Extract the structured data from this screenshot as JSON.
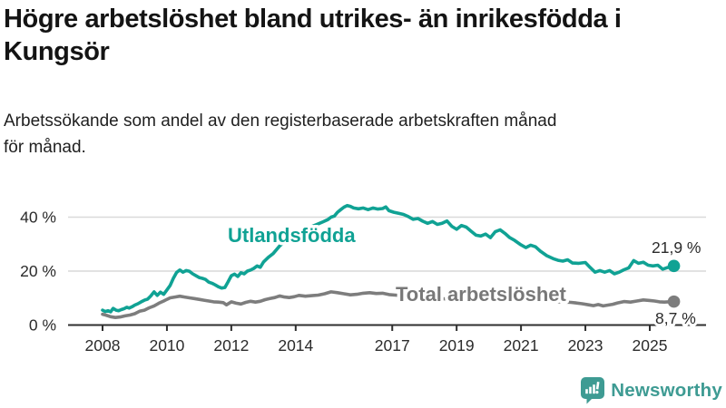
{
  "header": {
    "title_line1": "Högre arbetslöshet bland utrikes- än inrikesfödda i",
    "title_line2": "Kungsör",
    "subtitle_line1": "Arbetssökande som andel av den registerbaserade arbetskraften månad",
    "subtitle_line2": "för månad."
  },
  "chart_data": {
    "type": "line",
    "title": "",
    "xlabel": "",
    "ylabel": "",
    "x_unit": "year (monthly series)",
    "y_unit": "% av arbetskraften",
    "x_range": [
      2008,
      2025.75
    ],
    "y_range": [
      0,
      47
    ],
    "grid": true,
    "x_ticks": [
      2008,
      2010,
      2012,
      2014,
      2017,
      2019,
      2021,
      2023,
      2025
    ],
    "y_ticks": [
      {
        "value": 0,
        "label": "0 %"
      },
      {
        "value": 20,
        "label": "20 %"
      },
      {
        "value": 40,
        "label": "40 %"
      }
    ],
    "series": [
      {
        "name": "Utlandsfödda",
        "color": "#10a294",
        "end_label": "21,9 %",
        "end_value": 21.9,
        "points": [
          [
            2008.0,
            5.5
          ],
          [
            2008.08,
            5.0
          ],
          [
            2008.17,
            5.3
          ],
          [
            2008.25,
            4.9
          ],
          [
            2008.33,
            6.2
          ],
          [
            2008.42,
            5.5
          ],
          [
            2008.5,
            5.3
          ],
          [
            2008.58,
            5.7
          ],
          [
            2008.67,
            6.1
          ],
          [
            2008.75,
            6.6
          ],
          [
            2008.83,
            6.3
          ],
          [
            2008.92,
            6.8
          ],
          [
            2009.0,
            7.4
          ],
          [
            2009.1,
            7.9
          ],
          [
            2009.2,
            8.6
          ],
          [
            2009.3,
            9.2
          ],
          [
            2009.4,
            9.6
          ],
          [
            2009.5,
            10.8
          ],
          [
            2009.6,
            12.3
          ],
          [
            2009.7,
            11.0
          ],
          [
            2009.8,
            12.2
          ],
          [
            2009.9,
            11.4
          ],
          [
            2010.0,
            13.0
          ],
          [
            2010.1,
            14.7
          ],
          [
            2010.2,
            17.3
          ],
          [
            2010.3,
            19.5
          ],
          [
            2010.4,
            20.4
          ],
          [
            2010.5,
            19.6
          ],
          [
            2010.6,
            20.2
          ],
          [
            2010.7,
            19.9
          ],
          [
            2010.8,
            19.0
          ],
          [
            2010.9,
            18.3
          ],
          [
            2011.0,
            17.6
          ],
          [
            2011.1,
            17.3
          ],
          [
            2011.2,
            16.9
          ],
          [
            2011.3,
            15.9
          ],
          [
            2011.4,
            15.5
          ],
          [
            2011.5,
            14.9
          ],
          [
            2011.6,
            14.2
          ],
          [
            2011.7,
            13.7
          ],
          [
            2011.8,
            13.9
          ],
          [
            2011.9,
            16.0
          ],
          [
            2012.0,
            18.3
          ],
          [
            2012.1,
            18.9
          ],
          [
            2012.2,
            18.0
          ],
          [
            2012.3,
            19.4
          ],
          [
            2012.4,
            19.0
          ],
          [
            2012.5,
            20.0
          ],
          [
            2012.6,
            20.4
          ],
          [
            2012.7,
            21.0
          ],
          [
            2012.8,
            21.9
          ],
          [
            2012.9,
            21.4
          ],
          [
            2013.0,
            23.4
          ],
          [
            2013.15,
            25.1
          ],
          [
            2013.3,
            26.5
          ],
          [
            2013.5,
            29.3
          ],
          [
            2013.7,
            31.3
          ],
          [
            2013.9,
            33.0
          ],
          [
            2014.1,
            34.3
          ],
          [
            2014.35,
            35.8
          ],
          [
            2014.6,
            37.0
          ],
          [
            2014.85,
            38.3
          ],
          [
            2015.0,
            39.1
          ],
          [
            2015.1,
            40.0
          ],
          [
            2015.2,
            40.4
          ],
          [
            2015.3,
            41.8
          ],
          [
            2015.4,
            42.8
          ],
          [
            2015.5,
            43.7
          ],
          [
            2015.6,
            44.3
          ],
          [
            2015.7,
            44.0
          ],
          [
            2015.8,
            43.4
          ],
          [
            2015.95,
            43.1
          ],
          [
            2016.1,
            43.4
          ],
          [
            2016.25,
            42.8
          ],
          [
            2016.4,
            43.4
          ],
          [
            2016.55,
            43.0
          ],
          [
            2016.7,
            43.2
          ],
          [
            2016.8,
            43.8
          ],
          [
            2016.9,
            42.4
          ],
          [
            2017.05,
            41.8
          ],
          [
            2017.2,
            41.4
          ],
          [
            2017.35,
            41.0
          ],
          [
            2017.5,
            40.2
          ],
          [
            2017.65,
            39.2
          ],
          [
            2017.8,
            39.5
          ],
          [
            2017.95,
            38.5
          ],
          [
            2018.1,
            37.7
          ],
          [
            2018.25,
            38.4
          ],
          [
            2018.4,
            37.3
          ],
          [
            2018.55,
            37.7
          ],
          [
            2018.7,
            38.6
          ],
          [
            2018.85,
            36.6
          ],
          [
            2019.0,
            35.5
          ],
          [
            2019.15,
            36.9
          ],
          [
            2019.3,
            36.3
          ],
          [
            2019.45,
            34.8
          ],
          [
            2019.6,
            33.3
          ],
          [
            2019.75,
            33.0
          ],
          [
            2019.9,
            33.7
          ],
          [
            2020.05,
            32.4
          ],
          [
            2020.2,
            34.6
          ],
          [
            2020.35,
            35.3
          ],
          [
            2020.5,
            34.0
          ],
          [
            2020.65,
            32.4
          ],
          [
            2020.8,
            31.4
          ],
          [
            2021.0,
            29.7
          ],
          [
            2021.15,
            28.7
          ],
          [
            2021.3,
            29.6
          ],
          [
            2021.45,
            29.0
          ],
          [
            2021.6,
            27.4
          ],
          [
            2021.8,
            25.7
          ],
          [
            2022.0,
            24.6
          ],
          [
            2022.15,
            24.0
          ],
          [
            2022.3,
            23.7
          ],
          [
            2022.45,
            24.2
          ],
          [
            2022.6,
            23.0
          ],
          [
            2022.8,
            22.9
          ],
          [
            2023.0,
            23.2
          ],
          [
            2023.15,
            21.3
          ],
          [
            2023.3,
            19.6
          ],
          [
            2023.45,
            20.2
          ],
          [
            2023.6,
            19.6
          ],
          [
            2023.75,
            20.2
          ],
          [
            2023.9,
            19.0
          ],
          [
            2024.05,
            19.6
          ],
          [
            2024.2,
            20.5
          ],
          [
            2024.35,
            21.2
          ],
          [
            2024.5,
            23.9
          ],
          [
            2024.65,
            22.9
          ],
          [
            2024.8,
            23.3
          ],
          [
            2024.95,
            22.2
          ],
          [
            2025.1,
            21.9
          ],
          [
            2025.25,
            22.2
          ],
          [
            2025.4,
            20.7
          ],
          [
            2025.55,
            21.3
          ],
          [
            2025.75,
            21.9
          ]
        ]
      },
      {
        "name": "Total arbetslöshet",
        "color": "#7d7d7d",
        "end_label": "8,7 %",
        "end_value": 8.7,
        "points": [
          [
            2008.0,
            4.0
          ],
          [
            2008.1,
            3.7
          ],
          [
            2008.25,
            3.1
          ],
          [
            2008.4,
            2.8
          ],
          [
            2008.55,
            3.0
          ],
          [
            2008.7,
            3.4
          ],
          [
            2008.85,
            3.7
          ],
          [
            2009.0,
            4.2
          ],
          [
            2009.15,
            5.1
          ],
          [
            2009.3,
            5.5
          ],
          [
            2009.45,
            6.4
          ],
          [
            2009.6,
            7.1
          ],
          [
            2009.75,
            8.1
          ],
          [
            2009.9,
            8.9
          ],
          [
            2010.0,
            9.5
          ],
          [
            2010.1,
            10.1
          ],
          [
            2010.25,
            10.4
          ],
          [
            2010.4,
            10.7
          ],
          [
            2010.55,
            10.4
          ],
          [
            2010.7,
            10.1
          ],
          [
            2010.85,
            9.8
          ],
          [
            2011.0,
            9.5
          ],
          [
            2011.15,
            9.2
          ],
          [
            2011.3,
            8.9
          ],
          [
            2011.45,
            8.6
          ],
          [
            2011.6,
            8.5
          ],
          [
            2011.75,
            8.3
          ],
          [
            2011.85,
            7.5
          ],
          [
            2012.0,
            8.6
          ],
          [
            2012.15,
            8.1
          ],
          [
            2012.3,
            7.8
          ],
          [
            2012.45,
            8.4
          ],
          [
            2012.6,
            8.8
          ],
          [
            2012.75,
            8.5
          ],
          [
            2012.9,
            8.8
          ],
          [
            2013.05,
            9.4
          ],
          [
            2013.2,
            9.8
          ],
          [
            2013.35,
            10.2
          ],
          [
            2013.5,
            10.8
          ],
          [
            2013.65,
            10.4
          ],
          [
            2013.8,
            10.2
          ],
          [
            2013.95,
            10.5
          ],
          [
            2014.1,
            11.0
          ],
          [
            2014.3,
            10.7
          ],
          [
            2014.5,
            10.9
          ],
          [
            2014.7,
            11.1
          ],
          [
            2014.9,
            11.6
          ],
          [
            2015.1,
            12.3
          ],
          [
            2015.3,
            12.0
          ],
          [
            2015.5,
            11.6
          ],
          [
            2015.7,
            11.2
          ],
          [
            2015.9,
            11.4
          ],
          [
            2016.1,
            11.8
          ],
          [
            2016.3,
            12.0
          ],
          [
            2016.5,
            11.7
          ],
          [
            2016.7,
            11.8
          ],
          [
            2016.9,
            11.3
          ],
          [
            2017.1,
            11.1
          ],
          [
            2017.5,
            10.8
          ],
          [
            2018.0,
            10.2
          ],
          [
            2018.5,
            9.8
          ],
          [
            2019.0,
            9.4
          ],
          [
            2019.5,
            9.2
          ],
          [
            2020.0,
            9.6
          ],
          [
            2020.4,
            10.6
          ],
          [
            2020.8,
            10.2
          ],
          [
            2021.3,
            9.6
          ],
          [
            2021.8,
            9.0
          ],
          [
            2022.2,
            8.6
          ],
          [
            2022.55,
            8.4
          ],
          [
            2022.7,
            8.2
          ],
          [
            2022.9,
            7.9
          ],
          [
            2023.1,
            7.5
          ],
          [
            2023.25,
            7.2
          ],
          [
            2023.4,
            7.6
          ],
          [
            2023.55,
            7.1
          ],
          [
            2023.7,
            7.4
          ],
          [
            2023.85,
            7.7
          ],
          [
            2024.0,
            8.2
          ],
          [
            2024.2,
            8.7
          ],
          [
            2024.4,
            8.5
          ],
          [
            2024.6,
            8.9
          ],
          [
            2024.8,
            9.3
          ],
          [
            2025.0,
            9.1
          ],
          [
            2025.15,
            8.9
          ],
          [
            2025.3,
            8.6
          ],
          [
            2025.45,
            8.5
          ],
          [
            2025.75,
            8.7
          ]
        ]
      }
    ],
    "colors": {
      "grid": "#d9d9d9",
      "axis": "#2f2f2f",
      "accent_teal": "#10a294",
      "accent_gray": "#7d7d7d"
    }
  },
  "footer": {
    "brand": "Newsworthy",
    "logo_color": "#3e9b93"
  }
}
